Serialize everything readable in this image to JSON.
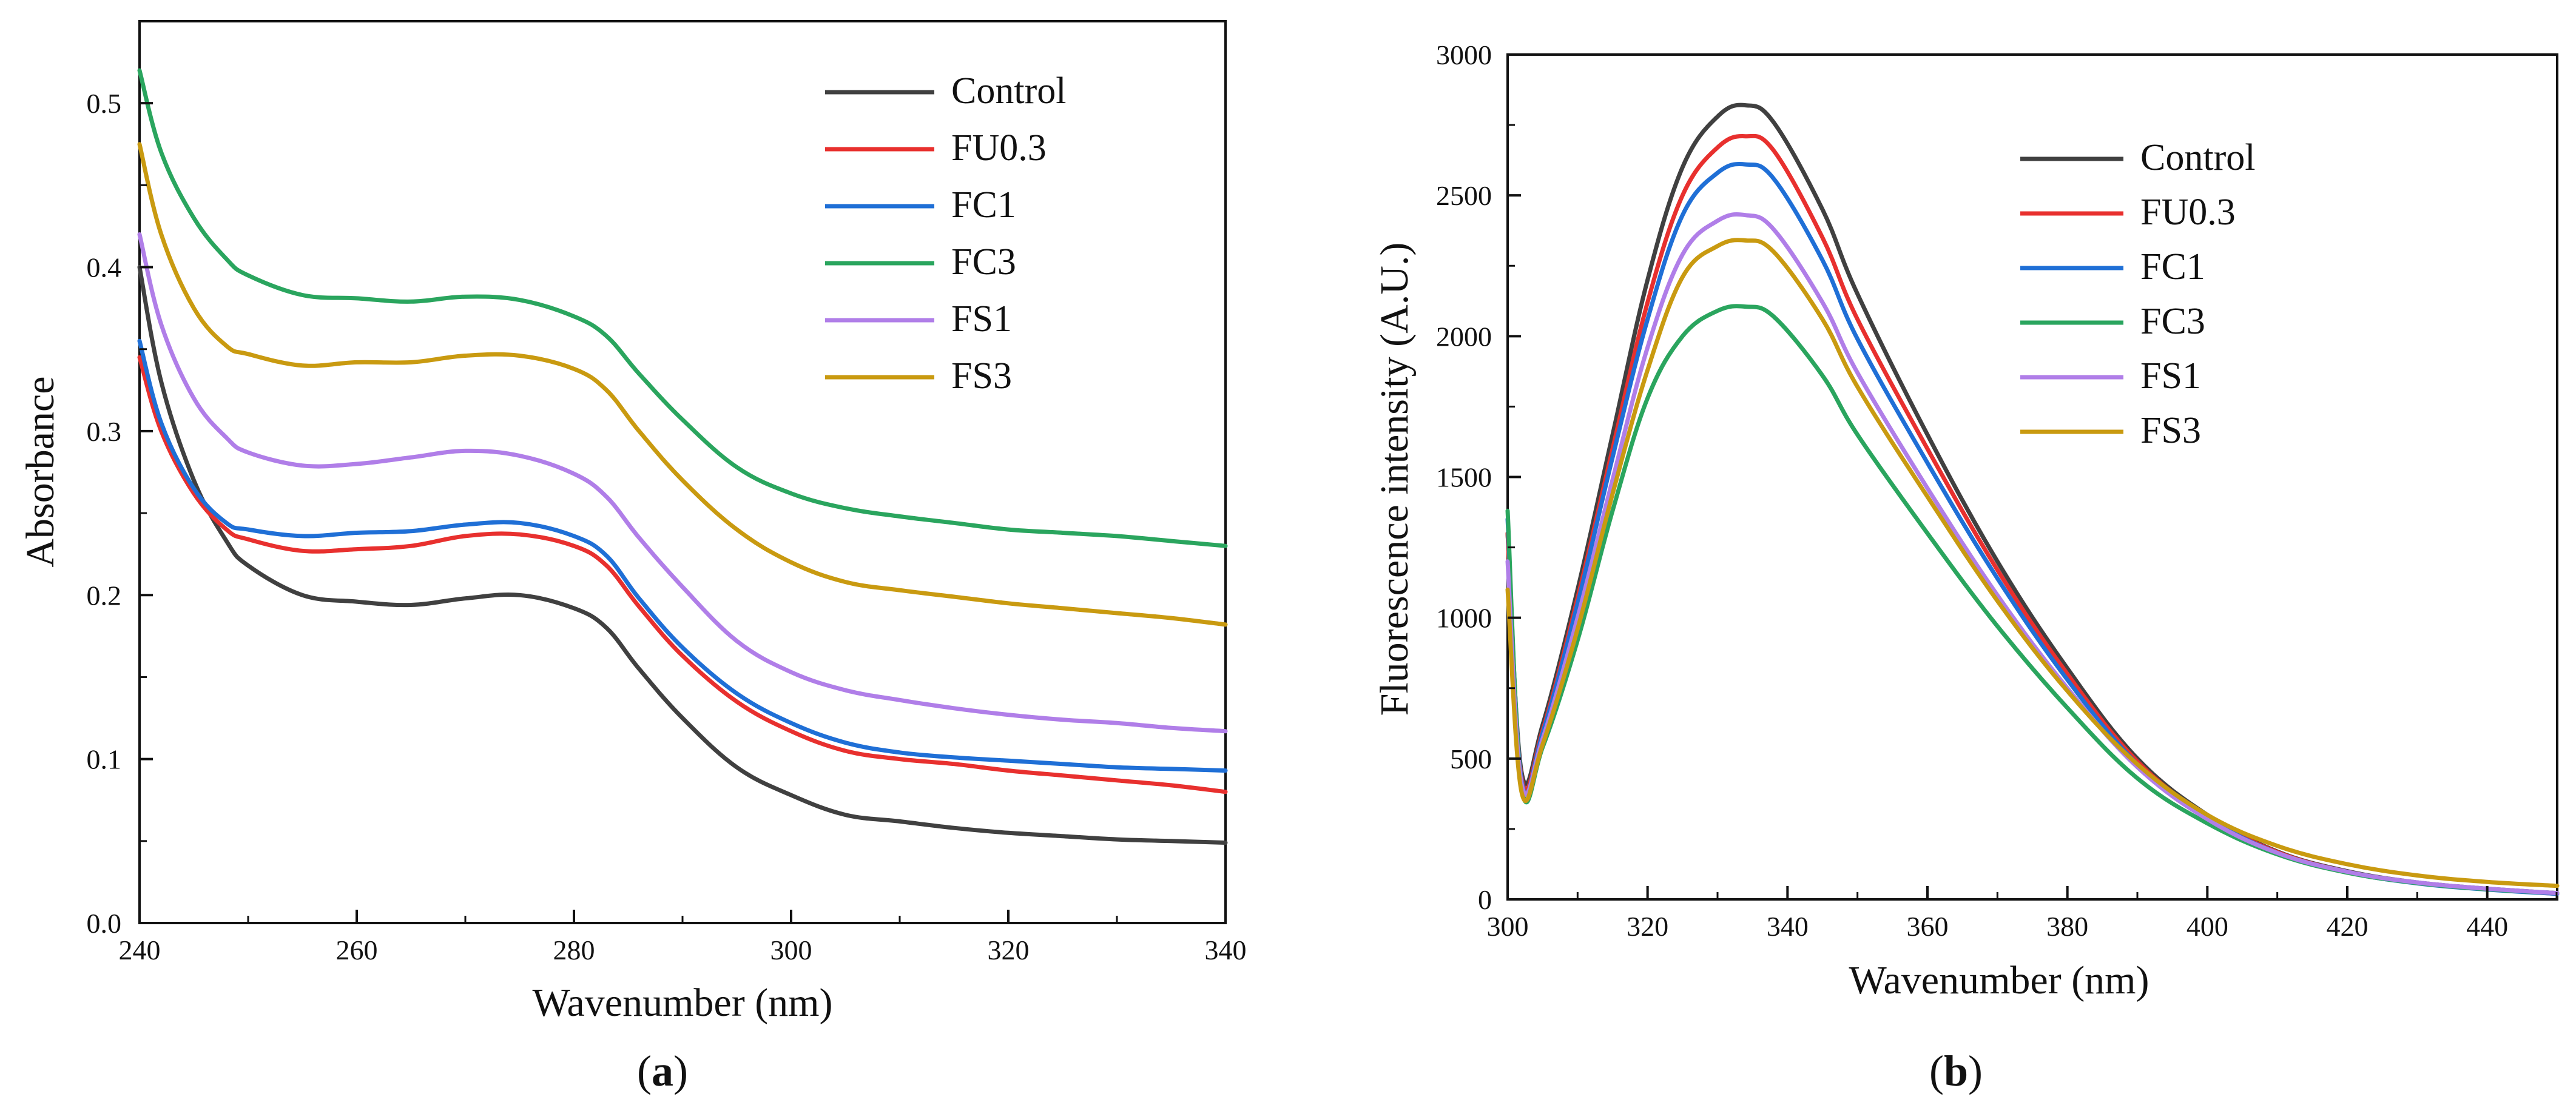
{
  "colors": {
    "Control": "#404040",
    "FU0.3": "#e8302e",
    "FC1": "#1f6fd6",
    "FC3": "#2aa55e",
    "FS1": "#b07ee8",
    "FS3": "#c99a10"
  },
  "chart_data": [
    {
      "id": "a",
      "type": "line",
      "panel_label": {
        "open": "(",
        "letter": "a",
        "close": ")"
      },
      "title": "",
      "xlabel": "Wavenumber (nm)",
      "ylabel": "Absorbance",
      "xlim": [
        240,
        340
      ],
      "ylim": [
        0.0,
        0.55
      ],
      "xticks": [
        240,
        260,
        280,
        300,
        320,
        340
      ],
      "xtick_labels": [
        "240",
        "260",
        "280",
        "300",
        "320",
        "340"
      ],
      "yticks": [
        0.0,
        0.1,
        0.2,
        0.3,
        0.4,
        0.5
      ],
      "ytick_labels": [
        "0.0",
        "0.1",
        "0.2",
        "0.3",
        "0.4",
        "0.5"
      ],
      "legend_position": "top-right",
      "x": [
        240,
        242,
        245,
        248,
        250,
        255,
        260,
        265,
        270,
        275,
        280,
        283,
        286,
        290,
        295,
        300,
        305,
        310,
        315,
        320,
        325,
        330,
        335,
        340
      ],
      "series": [
        {
          "name": "Control",
          "values": [
            0.4,
            0.33,
            0.27,
            0.233,
            0.218,
            0.2,
            0.196,
            0.194,
            0.198,
            0.2,
            0.192,
            0.18,
            0.155,
            0.125,
            0.095,
            0.078,
            0.066,
            0.062,
            0.058,
            0.055,
            0.053,
            0.051,
            0.05,
            0.049
          ]
        },
        {
          "name": "FU0.3",
          "values": [
            0.345,
            0.3,
            0.262,
            0.24,
            0.234,
            0.227,
            0.228,
            0.23,
            0.236,
            0.237,
            0.23,
            0.218,
            0.193,
            0.163,
            0.135,
            0.117,
            0.105,
            0.1,
            0.097,
            0.093,
            0.09,
            0.087,
            0.084,
            0.08
          ]
        },
        {
          "name": "FC1",
          "values": [
            0.355,
            0.305,
            0.265,
            0.244,
            0.24,
            0.236,
            0.238,
            0.239,
            0.243,
            0.244,
            0.236,
            0.224,
            0.198,
            0.168,
            0.14,
            0.122,
            0.11,
            0.104,
            0.101,
            0.099,
            0.097,
            0.095,
            0.094,
            0.093
          ]
        },
        {
          "name": "FC3",
          "values": [
            0.52,
            0.47,
            0.43,
            0.405,
            0.395,
            0.383,
            0.381,
            0.379,
            0.382,
            0.38,
            0.37,
            0.358,
            0.335,
            0.307,
            0.278,
            0.262,
            0.253,
            0.248,
            0.244,
            0.24,
            0.238,
            0.236,
            0.233,
            0.23
          ]
        },
        {
          "name": "FS1",
          "values": [
            0.42,
            0.365,
            0.32,
            0.296,
            0.287,
            0.279,
            0.28,
            0.284,
            0.288,
            0.285,
            0.274,
            0.26,
            0.235,
            0.205,
            0.172,
            0.153,
            0.142,
            0.136,
            0.131,
            0.127,
            0.124,
            0.122,
            0.119,
            0.117
          ]
        },
        {
          "name": "FS3",
          "values": [
            0.475,
            0.42,
            0.375,
            0.352,
            0.347,
            0.34,
            0.342,
            0.342,
            0.346,
            0.346,
            0.338,
            0.325,
            0.3,
            0.27,
            0.24,
            0.22,
            0.208,
            0.203,
            0.199,
            0.195,
            0.192,
            0.189,
            0.186,
            0.182
          ]
        }
      ]
    },
    {
      "id": "b",
      "type": "line",
      "panel_label": {
        "open": "(",
        "letter": "b",
        "close": ")"
      },
      "title": "",
      "xlabel": "Wavenumber (nm)",
      "ylabel": "Fluorescence intensity (A.U.)",
      "xlim": [
        300,
        450
      ],
      "ylim": [
        0,
        3000
      ],
      "xticks": [
        300,
        320,
        340,
        360,
        380,
        400,
        420,
        440
      ],
      "xtick_labels": [
        "300",
        "320",
        "340",
        "360",
        "380",
        "400",
        "420",
        "440"
      ],
      "yticks": [
        0,
        500,
        1000,
        1500,
        2000,
        2500,
        3000
      ],
      "ytick_labels": [
        "0",
        "500",
        "1000",
        "1500",
        "2000",
        "2500",
        "3000"
      ],
      "legend_position": "top-right",
      "x": [
        300,
        302,
        305,
        310,
        315,
        320,
        325,
        330,
        334,
        338,
        345,
        350,
        360,
        370,
        380,
        390,
        400,
        410,
        420,
        430,
        440,
        450
      ],
      "series": [
        {
          "name": "Control",
          "values": [
            1300,
            450,
            620,
            1100,
            1650,
            2200,
            2600,
            2780,
            2820,
            2760,
            2450,
            2150,
            1650,
            1200,
            820,
            500,
            300,
            170,
            100,
            60,
            38,
            22
          ]
        },
        {
          "name": "FU0.3",
          "values": [
            1300,
            430,
            600,
            1070,
            1600,
            2120,
            2500,
            2670,
            2710,
            2660,
            2350,
            2060,
            1600,
            1170,
            800,
            490,
            295,
            168,
            98,
            58,
            36,
            20
          ]
        },
        {
          "name": "FC1",
          "values": [
            1350,
            420,
            590,
            1050,
            1570,
            2060,
            2430,
            2580,
            2610,
            2560,
            2270,
            1990,
            1550,
            1140,
            780,
            480,
            290,
            165,
            96,
            57,
            35,
            20
          ]
        },
        {
          "name": "FC3",
          "values": [
            1380,
            400,
            540,
            920,
            1380,
            1780,
            2000,
            2090,
            2105,
            2070,
            1860,
            1650,
            1300,
            970,
            680,
            430,
            270,
            160,
            95,
            58,
            36,
            22
          ]
        },
        {
          "name": "FS1",
          "values": [
            1200,
            410,
            570,
            1000,
            1490,
            1960,
            2290,
            2410,
            2430,
            2380,
            2120,
            1870,
            1460,
            1080,
            750,
            470,
            285,
            165,
            98,
            60,
            38,
            22
          ]
        },
        {
          "name": "FS3",
          "values": [
            1100,
            380,
            550,
            960,
            1440,
            1880,
            2210,
            2320,
            2340,
            2300,
            2060,
            1820,
            1430,
            1060,
            740,
            480,
            300,
            190,
            125,
            85,
            62,
            48
          ]
        }
      ]
    }
  ]
}
